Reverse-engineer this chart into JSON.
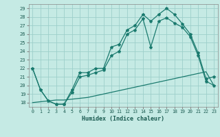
{
  "bg_color": "#c5eae4",
  "grid_color": "#9dcfca",
  "line_color": "#1a7a6e",
  "xlabel": "Humidex (Indice chaleur)",
  "xlim": [
    -0.5,
    23.5
  ],
  "ylim": [
    17.5,
    29.5
  ],
  "xticks": [
    0,
    1,
    2,
    3,
    4,
    5,
    6,
    7,
    8,
    9,
    10,
    11,
    12,
    13,
    14,
    15,
    16,
    17,
    18,
    19,
    20,
    21,
    22,
    23
  ],
  "yticks": [
    18,
    19,
    20,
    21,
    22,
    23,
    24,
    25,
    26,
    27,
    28,
    29
  ],
  "line_top": {
    "x": [
      0,
      1,
      2,
      3,
      4,
      5,
      6,
      7,
      8,
      9,
      10,
      11,
      12,
      13,
      14,
      15,
      16,
      17,
      18,
      19,
      20,
      21,
      22,
      23
    ],
    "y": [
      22.0,
      19.5,
      18.2,
      17.8,
      17.8,
      19.5,
      21.5,
      21.5,
      22.0,
      22.0,
      24.5,
      24.8,
      26.5,
      27.0,
      28.3,
      27.5,
      28.3,
      29.0,
      28.3,
      27.2,
      26.0,
      23.8,
      20.8,
      21.0
    ]
  },
  "line_mid": {
    "x": [
      0,
      1,
      2,
      3,
      4,
      5,
      6,
      7,
      8,
      9,
      10,
      11,
      12,
      13,
      14,
      15,
      16,
      17,
      18,
      19,
      20,
      21,
      22,
      23
    ],
    "y": [
      22.0,
      19.5,
      18.2,
      17.8,
      17.8,
      19.2,
      21.0,
      21.2,
      21.5,
      21.8,
      23.5,
      24.0,
      26.0,
      26.5,
      27.8,
      24.5,
      27.5,
      27.9,
      27.3,
      26.8,
      25.7,
      23.5,
      20.5,
      20.0
    ]
  },
  "line_bot": {
    "x": [
      0,
      1,
      2,
      3,
      4,
      5,
      6,
      7,
      8,
      9,
      10,
      11,
      12,
      13,
      14,
      15,
      16,
      17,
      18,
      19,
      20,
      21,
      22,
      23
    ],
    "y": [
      18.0,
      18.1,
      18.2,
      18.3,
      18.3,
      18.4,
      18.5,
      18.6,
      18.8,
      19.0,
      19.2,
      19.4,
      19.6,
      19.8,
      20.0,
      20.2,
      20.4,
      20.6,
      20.8,
      21.0,
      21.2,
      21.4,
      21.6,
      20.0
    ]
  }
}
